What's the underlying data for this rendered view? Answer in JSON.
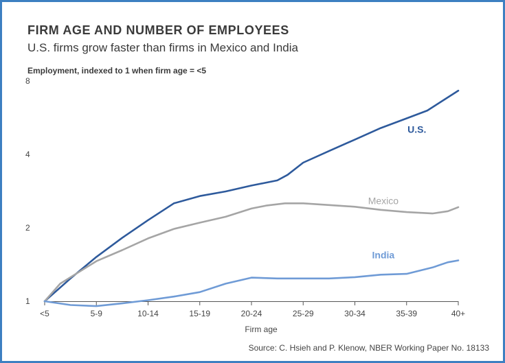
{
  "header": {
    "title": "FIRM AGE AND NUMBER OF EMPLOYEES",
    "subtitle": "U.S. firms grow faster than firms in Mexico and India",
    "ylabel": "Employment, indexed to 1 when firm age = <5"
  },
  "footer": {
    "source": "Source: C. Hsieh and P. Klenow, NBER Working Paper No. 18133"
  },
  "chart_data": {
    "type": "line",
    "title": "FIRM AGE AND NUMBER OF EMPLOYEES",
    "subtitle": "U.S. firms grow faster than firms in Mexico and India",
    "xlabel": "Firm age",
    "ylabel": "Employment, indexed to 1 when firm age = <5",
    "y_scale": "log2",
    "ylim": [
      1,
      8
    ],
    "y_ticks": [
      1,
      2,
      4,
      8
    ],
    "y_tick_labels": [
      "1",
      "2",
      "4",
      "8"
    ],
    "x_tick_labels": [
      "<5",
      "5-9",
      "10-14",
      "15-19",
      "20-24",
      "25-29",
      "30-34",
      "35-39",
      "40+"
    ],
    "grid": false,
    "series": [
      {
        "name": "U.S.",
        "color": "#2e5a9c",
        "label_at": [
          7.2,
          4.9
        ],
        "points": [
          [
            0,
            1.0
          ],
          [
            0.5,
            1.24
          ],
          [
            1,
            1.52
          ],
          [
            1.5,
            1.82
          ],
          [
            2,
            2.15
          ],
          [
            2.5,
            2.52
          ],
          [
            3,
            2.7
          ],
          [
            3.5,
            2.82
          ],
          [
            4,
            2.98
          ],
          [
            4.5,
            3.13
          ],
          [
            4.7,
            3.3
          ],
          [
            5,
            3.7
          ],
          [
            5.5,
            4.13
          ],
          [
            6,
            4.6
          ],
          [
            6.5,
            5.13
          ],
          [
            7,
            5.62
          ],
          [
            7.4,
            6.05
          ],
          [
            8,
            7.3
          ]
        ]
      },
      {
        "name": "Mexico",
        "color": "#a5a5a5",
        "label_at": [
          6.55,
          2.5
        ],
        "points": [
          [
            0,
            1.0
          ],
          [
            0.3,
            1.18
          ],
          [
            1,
            1.46
          ],
          [
            1.5,
            1.62
          ],
          [
            2,
            1.81
          ],
          [
            2.5,
            1.98
          ],
          [
            3,
            2.1
          ],
          [
            3.5,
            2.22
          ],
          [
            4,
            2.4
          ],
          [
            4.3,
            2.47
          ],
          [
            4.65,
            2.52
          ],
          [
            5,
            2.52
          ],
          [
            5.5,
            2.48
          ],
          [
            6,
            2.44
          ],
          [
            6.5,
            2.37
          ],
          [
            7,
            2.32
          ],
          [
            7.5,
            2.29
          ],
          [
            7.8,
            2.34
          ],
          [
            8,
            2.43
          ]
        ]
      },
      {
        "name": "India",
        "color": "#6f9bd6",
        "label_at": [
          6.55,
          1.5
        ],
        "points": [
          [
            0,
            1.0
          ],
          [
            0.5,
            0.965
          ],
          [
            1,
            0.955
          ],
          [
            1.5,
            0.98
          ],
          [
            2,
            1.01
          ],
          [
            2.5,
            1.045
          ],
          [
            3,
            1.09
          ],
          [
            3.5,
            1.18
          ],
          [
            4,
            1.25
          ],
          [
            4.5,
            1.24
          ],
          [
            5,
            1.24
          ],
          [
            5.5,
            1.24
          ],
          [
            6,
            1.255
          ],
          [
            6.5,
            1.285
          ],
          [
            7,
            1.295
          ],
          [
            7.5,
            1.375
          ],
          [
            7.8,
            1.445
          ],
          [
            8,
            1.47
          ]
        ]
      }
    ]
  }
}
